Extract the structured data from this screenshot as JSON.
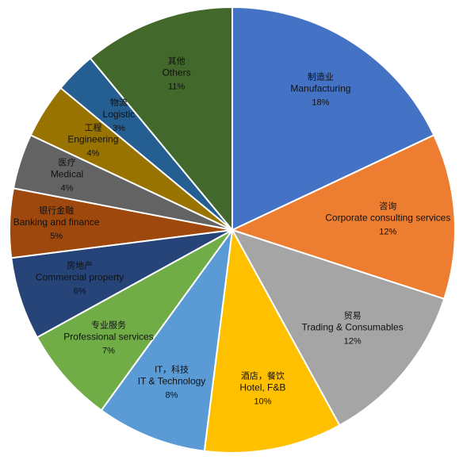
{
  "chart_data": {
    "type": "pie",
    "title": "",
    "start_angle_deg": 0,
    "direction": "clockwise",
    "slices": [
      {
        "label_cn": "制造业",
        "label_en": "Manufacturing",
        "value": 18,
        "value_label": "18%",
        "color": "#4472C4"
      },
      {
        "label_cn": "咨询",
        "label_en": "Corporate consulting services",
        "value": 12,
        "value_label": "12%",
        "color": "#ED7D31"
      },
      {
        "label_cn": "贸易",
        "label_en": "Trading & Consumables",
        "value": 12,
        "value_label": "12%",
        "color": "#A5A5A5"
      },
      {
        "label_cn": "酒店，餐饮",
        "label_en": "Hotel, F&B",
        "value": 10,
        "value_label": "10%",
        "color": "#FFC000"
      },
      {
        "label_cn": "IT，科技",
        "label_en": "IT & Technology",
        "value": 8,
        "value_label": "8%",
        "color": "#5B9BD5"
      },
      {
        "label_cn": "专业服务",
        "label_en": "Professional services",
        "value": 7,
        "value_label": "7%",
        "color": "#70AD47"
      },
      {
        "label_cn": "房地产",
        "label_en": "Commercial property",
        "value": 6,
        "value_label": "6%",
        "color": "#264478"
      },
      {
        "label_cn": "银行金融",
        "label_en": "Banking and finance",
        "value": 5,
        "value_label": "5%",
        "color": "#9E480E"
      },
      {
        "label_cn": "医疗",
        "label_en": "Medical",
        "value": 4,
        "value_label": "4%",
        "color": "#636363"
      },
      {
        "label_cn": "工程",
        "label_en": "Engineering",
        "value": 4,
        "value_label": "4%",
        "color": "#997300"
      },
      {
        "label_cn": "物流",
        "label_en": "Logistic",
        "value": 3,
        "value_label": "3%",
        "color": "#255E91"
      },
      {
        "label_cn": "其他",
        "label_en": "Others",
        "value": 11,
        "value_label": "11%",
        "color": "#43682B"
      }
    ],
    "legend": "none"
  }
}
